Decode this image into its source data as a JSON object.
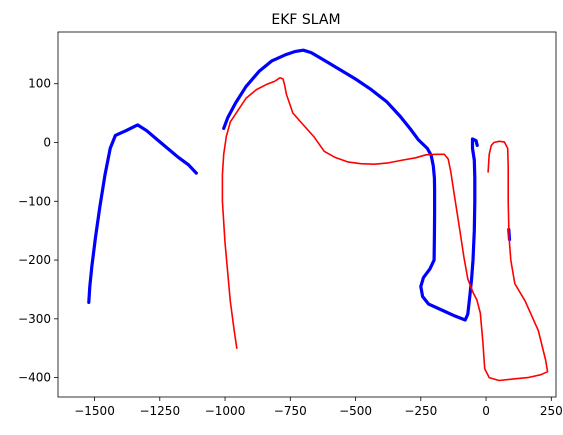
{
  "chart_data": {
    "type": "line",
    "title": "EKF SLAM",
    "xlabel": "",
    "ylabel": "",
    "xlim": [
      -1640,
      268
    ],
    "ylim": [
      -433,
      188
    ],
    "xticks": [
      -1500,
      -1250,
      -1000,
      -750,
      -500,
      -250,
      0,
      250
    ],
    "yticks": [
      100,
      0,
      -100,
      -200,
      -300,
      -400
    ],
    "grid": false,
    "legend": "none",
    "series": [
      {
        "color": "#0000ff",
        "style": "thick",
        "segments": [
          [
            [
              -1522,
              -272
            ],
            [
              -1518,
              -245
            ],
            [
              -1510,
              -210
            ],
            [
              -1496,
              -160
            ],
            [
              -1480,
              -110
            ],
            [
              -1460,
              -55
            ],
            [
              -1440,
              -10
            ],
            [
              -1420,
              12
            ],
            [
              -1380,
              20
            ],
            [
              -1335,
              30
            ],
            [
              -1300,
              20
            ],
            [
              -1260,
              5
            ],
            [
              -1220,
              -10
            ],
            [
              -1180,
              -25
            ],
            [
              -1140,
              -38
            ],
            [
              -1110,
              -52
            ]
          ],
          [
            [
              -1005,
              24
            ],
            [
              -990,
              42
            ],
            [
              -960,
              67
            ],
            [
              -920,
              95
            ],
            [
              -870,
              121
            ],
            [
              -820,
              139
            ],
            [
              -770,
              149
            ],
            [
              -730,
              155
            ],
            [
              -700,
              157
            ],
            [
              -670,
              153
            ],
            [
              -620,
              140
            ],
            [
              -560,
              124
            ],
            [
              -500,
              108
            ],
            [
              -440,
              90
            ],
            [
              -380,
              69
            ],
            [
              -330,
              45
            ],
            [
              -290,
              23
            ],
            [
              -260,
              5
            ],
            [
              -225,
              -10
            ],
            [
              -210,
              -22
            ],
            [
              -202,
              -40
            ],
            [
              -198,
              -60
            ],
            [
              -197,
              -80
            ],
            [
              -197,
              -120
            ],
            [
              -198,
              -160
            ],
            [
              -199,
              -200
            ],
            [
              -215,
              -215
            ],
            [
              -240,
              -230
            ],
            [
              -250,
              -245
            ],
            [
              -243,
              -262
            ],
            [
              -220,
              -275
            ],
            [
              -170,
              -285
            ],
            [
              -120,
              -295
            ],
            [
              -80,
              -302
            ],
            [
              -70,
              -292
            ],
            [
              -62,
              -260
            ],
            [
              -55,
              -230
            ],
            [
              -50,
              -200
            ],
            [
              -45,
              -150
            ],
            [
              -43,
              -100
            ],
            [
              -43,
              -60
            ],
            [
              -45,
              -30
            ],
            [
              -52,
              -10
            ],
            [
              -52,
              6
            ],
            [
              -38,
              3
            ],
            [
              -34,
              -5
            ]
          ],
          [
            [
              87,
              -148
            ],
            [
              90,
              -165
            ]
          ]
        ]
      },
      {
        "color": "#ff0000",
        "style": "thin",
        "segments": [
          [
            [
              -955,
              -350
            ],
            [
              -965,
              -320
            ],
            [
              -980,
              -270
            ],
            [
              -1000,
              -170
            ],
            [
              -1010,
              -100
            ],
            [
              -1010,
              -55
            ],
            [
              -1005,
              -20
            ],
            [
              -995,
              10
            ],
            [
              -980,
              35
            ],
            [
              -950,
              55
            ],
            [
              -920,
              75
            ],
            [
              -880,
              90
            ],
            [
              -840,
              99
            ],
            [
              -810,
              104
            ],
            [
              -790,
              110
            ],
            [
              -778,
              108
            ],
            [
              -772,
              98
            ],
            [
              -765,
              82
            ],
            [
              -740,
              50
            ],
            [
              -700,
              30
            ],
            [
              -660,
              10
            ],
            [
              -620,
              -15
            ],
            [
              -580,
              -25
            ],
            [
              -530,
              -33
            ],
            [
              -480,
              -36
            ],
            [
              -430,
              -37
            ],
            [
              -380,
              -35
            ],
            [
              -320,
              -30
            ],
            [
              -270,
              -26
            ],
            [
              -230,
              -21
            ],
            [
              -190,
              -20
            ],
            [
              -160,
              -20
            ],
            [
              -145,
              -28
            ],
            [
              -135,
              -50
            ],
            [
              -118,
              -100
            ],
            [
              -100,
              -150
            ],
            [
              -85,
              -195
            ],
            [
              -70,
              -232
            ],
            [
              -50,
              -255
            ],
            [
              -35,
              -268
            ],
            [
              -22,
              -290
            ],
            [
              -12,
              -340
            ],
            [
              -5,
              -385
            ],
            [
              12,
              -400
            ],
            [
              50,
              -405
            ],
            [
              110,
              -402
            ],
            [
              160,
              -400
            ],
            [
              210,
              -395
            ],
            [
              236,
              -390
            ],
            [
              228,
              -370
            ],
            [
              200,
              -320
            ],
            [
              150,
              -270
            ],
            [
              110,
              -240
            ],
            [
              95,
              -200
            ],
            [
              88,
              -160
            ],
            [
              85,
              -100
            ],
            [
              85,
              -40
            ],
            [
              83,
              -10
            ],
            [
              70,
              1
            ],
            [
              50,
              2
            ],
            [
              30,
              0
            ],
            [
              20,
              -5
            ],
            [
              12,
              -20
            ],
            [
              8,
              -50
            ]
          ]
        ]
      }
    ]
  }
}
